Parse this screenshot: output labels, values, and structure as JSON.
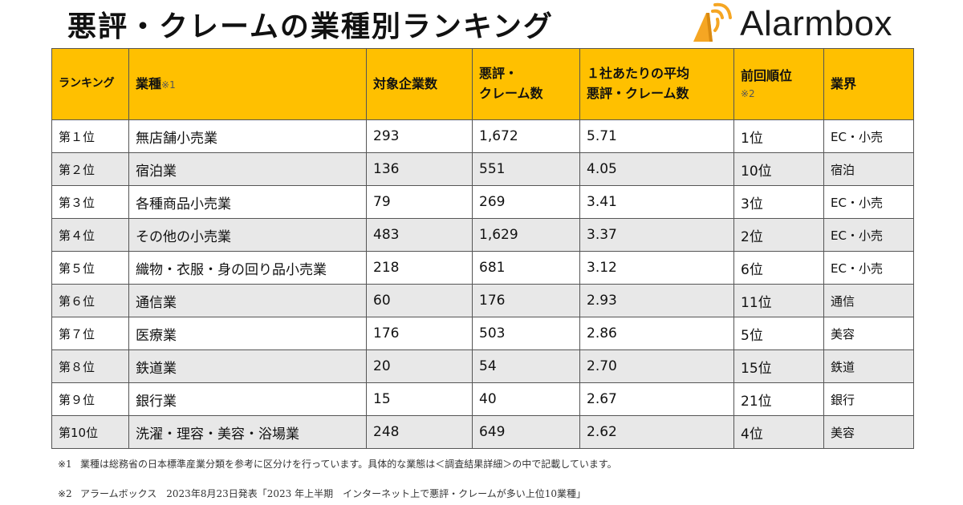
{
  "title": "悪評・クレームの業種別ランキング",
  "brand": {
    "name": "Alarmbox",
    "icon": "alarmbox-logo-icon",
    "icon_color": "#f5a623"
  },
  "colors": {
    "header_bg": "#ffc000",
    "row_alt_bg": "#e8e8e8",
    "border": "#555555"
  },
  "table": {
    "headers": {
      "rank": "ランキング",
      "industry_label": "業種",
      "industry_note": "※1",
      "companies": "対象企業数",
      "complaints_line1": "悪評・",
      "complaints_line2": "クレーム数",
      "average_line1": "１社あたりの平均",
      "average_line2": "悪評・クレーム数",
      "previous_label": "前回順位",
      "previous_note": "※2",
      "sector": "業界"
    },
    "rows": [
      {
        "rank": "第１位",
        "industry": "無店舗小売業",
        "companies": "293",
        "complaints": "1,672",
        "average": "5.71",
        "previous": "1位",
        "sector": "EC・小売"
      },
      {
        "rank": "第２位",
        "industry": "宿泊業",
        "companies": "136",
        "complaints": "551",
        "average": "4.05",
        "previous": "10位",
        "sector": "宿泊"
      },
      {
        "rank": "第３位",
        "industry": "各種商品小売業",
        "companies": "79",
        "complaints": "269",
        "average": "3.41",
        "previous": "3位",
        "sector": "EC・小売"
      },
      {
        "rank": "第４位",
        "industry": "その他の小売業",
        "companies": "483",
        "complaints": "1,629",
        "average": "3.37",
        "previous": "2位",
        "sector": "EC・小売"
      },
      {
        "rank": "第５位",
        "industry": "織物・衣服・身の回り品小売業",
        "companies": "218",
        "complaints": "681",
        "average": "3.12",
        "previous": "6位",
        "sector": "EC・小売"
      },
      {
        "rank": "第６位",
        "industry": "通信業",
        "companies": "60",
        "complaints": "176",
        "average": "2.93",
        "previous": "11位",
        "sector": "通信"
      },
      {
        "rank": "第７位",
        "industry": "医療業",
        "companies": "176",
        "complaints": "503",
        "average": "2.86",
        "previous": "5位",
        "sector": "美容"
      },
      {
        "rank": "第８位",
        "industry": "鉄道業",
        "companies": "20",
        "complaints": "54",
        "average": "2.70",
        "previous": "15位",
        "sector": "鉄道"
      },
      {
        "rank": "第９位",
        "industry": "銀行業",
        "companies": "15",
        "complaints": "40",
        "average": "2.67",
        "previous": "21位",
        "sector": "銀行"
      },
      {
        "rank": "第10位",
        "industry": "洗濯・理容・美容・浴場業",
        "companies": "248",
        "complaints": "649",
        "average": "2.62",
        "previous": "4位",
        "sector": "美容"
      }
    ]
  },
  "footnotes": [
    {
      "mark": "※1",
      "text": "業種は総務省の日本標準産業分類を参考に区分けを行っています。具体的な業態は＜調査結果詳細＞の中で記載しています。"
    },
    {
      "mark": "※2",
      "text": "アラームボックス　2023年8月23日発表「2023 年上半期　インターネット上で悪評・クレームが多い上位10業種」"
    }
  ]
}
